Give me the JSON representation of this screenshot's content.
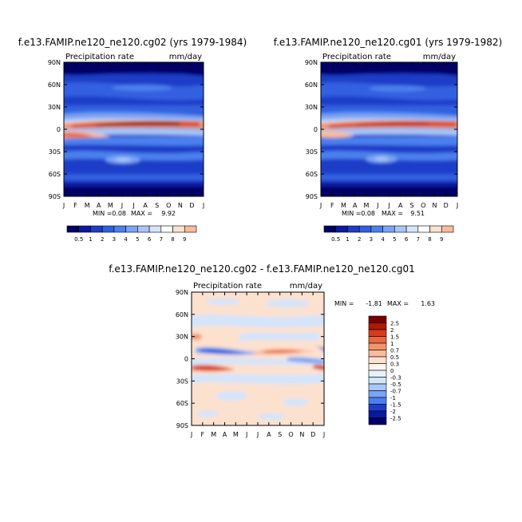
{
  "chart_data": [
    {
      "type": "heatmap",
      "title": "f.e13.FAMIP.ne120_ne120.cg02 (yrs 1979-1984)",
      "subtitle_left": "Precipitation rate",
      "subtitle_right": "mm/day",
      "x_ticks": [
        "J",
        "F",
        "M",
        "A",
        "M",
        "J",
        "J",
        "A",
        "S",
        "O",
        "N",
        "D",
        "J"
      ],
      "y_ticks": [
        "90N",
        "60N",
        "30N",
        "0",
        "30S",
        "60S",
        "90S"
      ],
      "min_label": "MIN =",
      "min_value": "0.08",
      "max_label": "MAX =",
      "max_value": "9.92",
      "colorbar_labels": [
        "0.5",
        "1",
        "2",
        "3",
        "4",
        "5",
        "6",
        "7",
        "8",
        "9"
      ],
      "colors": [
        "#000066",
        "#0a1aa0",
        "#1f3cc8",
        "#3060e0",
        "#4c80ee",
        "#7aa4f4",
        "#a8c6f8",
        "#d4e4fb",
        "#ffffff",
        "#fde1cf",
        "#f8bc9c",
        "#f2946a",
        "#e86a40",
        "#d43c1c",
        "#b01808",
        "#7a0000"
      ]
    },
    {
      "type": "heatmap",
      "title": "f.e13.FAMIP.ne120_ne120.cg01 (yrs 1979-1982)",
      "subtitle_left": "Precipitation rate",
      "subtitle_right": "mm/day",
      "x_ticks": [
        "J",
        "F",
        "M",
        "A",
        "M",
        "J",
        "J",
        "A",
        "S",
        "O",
        "N",
        "D",
        "J"
      ],
      "y_ticks": [
        "90N",
        "60N",
        "30N",
        "0",
        "30S",
        "60S",
        "90S"
      ],
      "min_label": "MIN =",
      "min_value": "0.08",
      "max_label": "MAX =",
      "max_value": "9.51",
      "colorbar_labels": [
        "0.5",
        "1",
        "2",
        "3",
        "4",
        "5",
        "6",
        "7",
        "8",
        "9"
      ]
    },
    {
      "type": "heatmap",
      "title": "f.e13.FAMIP.ne120_ne120.cg02 - f.e13.FAMIP.ne120_ne120.cg01",
      "subtitle_left": "Precipitation rate",
      "subtitle_right": "mm/day",
      "x_ticks": [
        "J",
        "F",
        "M",
        "A",
        "M",
        "J",
        "J",
        "A",
        "S",
        "O",
        "N",
        "D",
        "J"
      ],
      "y_ticks": [
        "90N",
        "60N",
        "30N",
        "0",
        "30S",
        "60S",
        "90S"
      ],
      "min_label": "MIN =",
      "min_value": "-1.81",
      "max_label": "MAX =",
      "max_value": "1.63",
      "colorbar_labels": [
        "2.5",
        "2",
        "1.5",
        "1",
        "0.7",
        "0.5",
        "0.3",
        "0",
        "-0.3",
        "-0.5",
        "-0.7",
        "-1",
        "-1.5",
        "-2",
        "-2.5"
      ],
      "colors": [
        "#7a0000",
        "#b01808",
        "#d43c1c",
        "#e86a40",
        "#f2946a",
        "#f8bc9c",
        "#fde1cf",
        "#fff4ee",
        "#e8f0fc",
        "#d4e4fb",
        "#a8c6f8",
        "#7aa4f4",
        "#4c80ee",
        "#1f3cc8",
        "#0a1aa0",
        "#000066"
      ]
    }
  ]
}
